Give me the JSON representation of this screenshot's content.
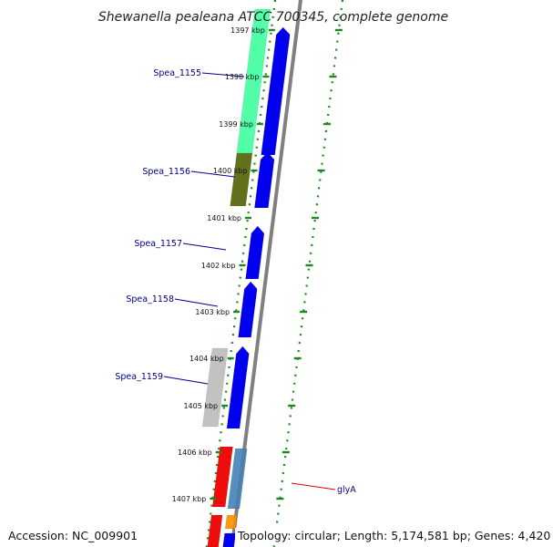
{
  "title": "Shewanella pealeana ATCC 700345, complete genome",
  "footer": {
    "accession": "Accession: NC_009901",
    "topology": "Topology: circular; Length: 5,174,581 bp; Genes: 4,420"
  },
  "ticks": [
    {
      "label": "1397 kbp"
    },
    {
      "label": "1398 kbp"
    },
    {
      "label": "1399 kbp"
    },
    {
      "label": "1400 kbp"
    },
    {
      "label": "1401 kbp"
    },
    {
      "label": "1402 kbp"
    },
    {
      "label": "1403 kbp"
    },
    {
      "label": "1404 kbp"
    },
    {
      "label": "1405 kbp"
    },
    {
      "label": "1406 kbp"
    },
    {
      "label": "1407 kbp"
    }
  ],
  "gene_labels": [
    {
      "label": "Spea_1155",
      "color": "#00008b"
    },
    {
      "label": "Spea_1156",
      "color": "#00008b"
    },
    {
      "label": "Spea_1157",
      "color": "#00008b"
    },
    {
      "label": "Spea_1158",
      "color": "#00008b"
    },
    {
      "label": "Spea_1159",
      "color": "#00008b"
    },
    {
      "label": "glyA",
      "color": "#dd0000"
    }
  ],
  "colors": {
    "cds": "#0000ee",
    "backbone": "#808080",
    "gc_track": "#1a8a1a",
    "spea_1155_feature": "#33ff99",
    "spea_1156_feature": "#5a6a10",
    "spea_1159_feature": "#b8b8b8",
    "glyA_feature": "#ee0000",
    "glyA_partner": "#4682b4",
    "small_feature": "#ff8c00"
  }
}
